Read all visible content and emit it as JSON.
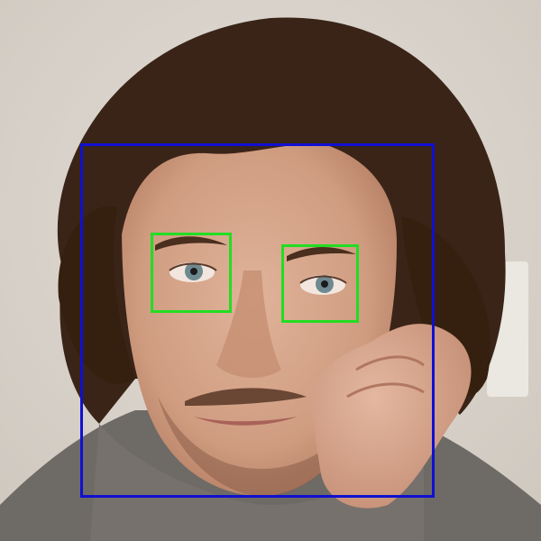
{
  "image": {
    "subject": "portrait-photo",
    "detections": {
      "face": {
        "label": "face",
        "color": "#1010d0"
      },
      "eyes": [
        {
          "label": "eye",
          "color": "#22dd22"
        },
        {
          "label": "eye",
          "color": "#22dd22"
        }
      ]
    },
    "colors": {
      "background": "#d8d3cc",
      "hair": "#3a2418",
      "skin": "#d6a68a",
      "sweater": "#6e6a66",
      "iris": "#6e8a90"
    }
  }
}
